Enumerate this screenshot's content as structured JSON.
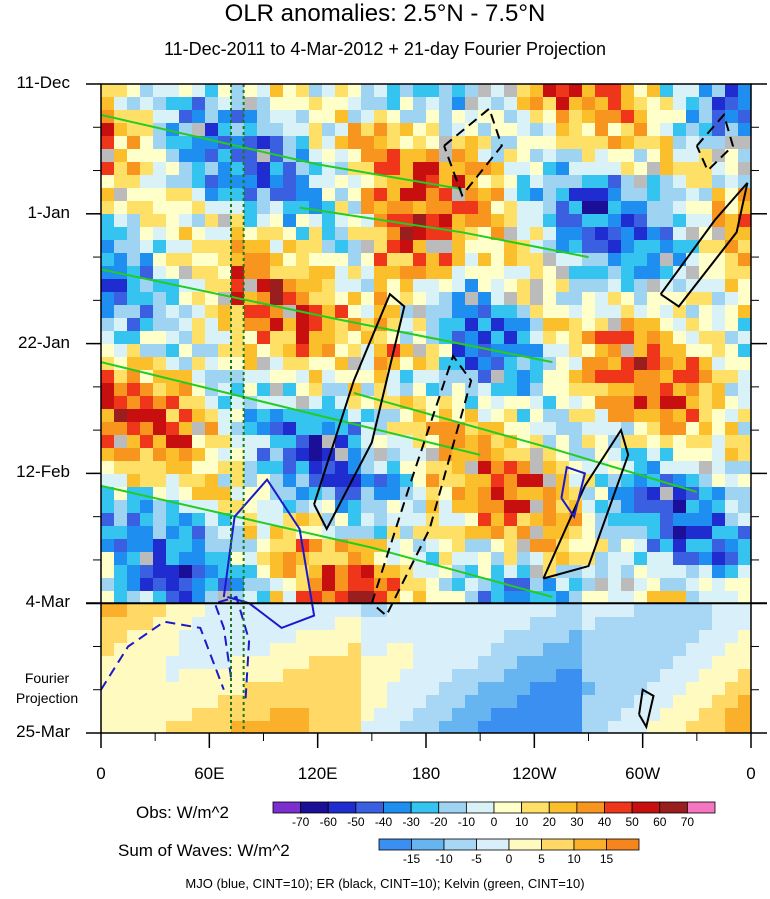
{
  "title": "OLR anomalies: 2.5°N - 7.5°N",
  "subtitle": "11-Dec-2011 to 4-Mar-2012 + 21-day Fourier Projection",
  "caption": "MJO (blue, CINT=10); ER (black, CINT=10); Kelvin (green, CINT=10)",
  "projection_label": [
    "Fourier",
    "Projection"
  ],
  "colors": {
    "mjo": "#1a1acc",
    "er": "#000000",
    "kelvin": "#22cc22",
    "missing": "#bbbbbb"
  },
  "legend_obs": {
    "label": "Obs: W/m^2",
    "ticks": [
      "-70",
      "-60",
      "-50",
      "-40",
      "-30",
      "-20",
      "-10",
      "0",
      "10",
      "20",
      "30",
      "40",
      "50",
      "60",
      "70"
    ],
    "colors": [
      "#7b2fd1",
      "#1a0f96",
      "#1f2ccf",
      "#3a5fe0",
      "#1e8ff0",
      "#35c3f0",
      "#9fd3f2",
      "#d9f2f7",
      "#ffffc9",
      "#ffe066",
      "#fbbf2c",
      "#f7951e",
      "#f0361a",
      "#c80f0f",
      "#9a1e1e",
      "#f575c0"
    ]
  },
  "legend_waves": {
    "label": "Sum of Waves: W/m^2",
    "ticks": [
      "-15",
      "-10",
      "-5",
      "0",
      "5",
      "10",
      "15"
    ],
    "colors": [
      "#3a8ff0",
      "#67b5f0",
      "#a8d6f5",
      "#d9f0fa",
      "#fffbc0",
      "#ffd866",
      "#fbb02c",
      "#f7851e"
    ]
  },
  "chart_data": {
    "type": "heatmap",
    "description_axes": "Hovmoller: longitude (x) vs time (y, downward)",
    "x_ticks": [
      "0",
      "60E",
      "120E",
      "180",
      "120W",
      "60W",
      "0"
    ],
    "x_values": [
      0,
      60,
      120,
      180,
      240,
      300,
      360
    ],
    "y_ticks": [
      "11-Dec",
      "1-Jan",
      "22-Jan",
      "12-Feb",
      "4-Mar",
      "25-Mar"
    ],
    "y_day_offsets": [
      0,
      21,
      42,
      63,
      84,
      105
    ],
    "xlim": [
      0,
      360
    ],
    "ylim_days": [
      0,
      105
    ],
    "projection_start_day": 84,
    "reference_lines_lon": [
      72,
      79
    ],
    "mjo_contours_dashed": [
      {
        "pts": [
          [
            72,
            96
          ],
          [
            68,
            88
          ],
          [
            63,
            84
          ],
          [
            75,
            83
          ],
          [
            82,
            90
          ],
          [
            80,
            100
          ]
        ]
      },
      {
        "pts": [
          [
            0,
            98
          ],
          [
            15,
            91
          ],
          [
            35,
            87
          ],
          [
            55,
            88
          ],
          [
            68,
            98
          ]
        ]
      }
    ],
    "mjo_contours_solid": [
      {
        "pts": [
          [
            68,
            83
          ],
          [
            74,
            70
          ],
          [
            92,
            64
          ],
          [
            110,
            72
          ],
          [
            118,
            86
          ],
          [
            100,
            88
          ],
          [
            82,
            84
          ],
          [
            70,
            83
          ]
        ]
      },
      {
        "pts": [
          [
            255,
            67
          ],
          [
            258,
            62
          ],
          [
            268,
            63
          ],
          [
            262,
            70
          ],
          [
            255,
            67
          ]
        ]
      }
    ],
    "er_contours_solid": [
      {
        "pts": [
          [
            118,
            68
          ],
          [
            140,
            48
          ],
          [
            160,
            34
          ],
          [
            168,
            36
          ],
          [
            150,
            58
          ],
          [
            125,
            72
          ],
          [
            118,
            68
          ]
        ]
      },
      {
        "pts": [
          [
            245,
            80
          ],
          [
            268,
            65
          ],
          [
            288,
            56
          ],
          [
            292,
            60
          ],
          [
            270,
            78
          ],
          [
            245,
            80
          ]
        ]
      },
      {
        "pts": [
          [
            310,
            34
          ],
          [
            340,
            22
          ],
          [
            358,
            16
          ],
          [
            352,
            24
          ],
          [
            320,
            36
          ],
          [
            310,
            34
          ]
        ]
      },
      {
        "pts": [
          [
            298,
            102
          ],
          [
            300,
            98
          ],
          [
            306,
            99
          ],
          [
            302,
            104
          ],
          [
            298,
            102
          ]
        ]
      }
    ],
    "er_contours_dashed": [
      {
        "pts": [
          [
            150,
            84
          ],
          [
            172,
            64
          ],
          [
            195,
            44
          ],
          [
            205,
            48
          ],
          [
            182,
            72
          ],
          [
            158,
            86
          ],
          [
            150,
            84
          ]
        ]
      },
      {
        "pts": [
          [
            190,
            10
          ],
          [
            215,
            4
          ],
          [
            222,
            10
          ],
          [
            200,
            18
          ],
          [
            190,
            10
          ]
        ]
      },
      {
        "pts": [
          [
            330,
            10
          ],
          [
            345,
            5
          ],
          [
            350,
            10
          ],
          [
            336,
            14
          ],
          [
            330,
            10
          ]
        ]
      }
    ],
    "kelvin_contours": [
      {
        "pts": [
          [
            0,
            5
          ],
          [
            120,
            13
          ],
          [
            200,
            17
          ]
        ]
      },
      {
        "pts": [
          [
            0,
            30
          ],
          [
            130,
            38
          ],
          [
            250,
            45
          ]
        ]
      },
      {
        "pts": [
          [
            0,
            45
          ],
          [
            140,
            55
          ],
          [
            210,
            60
          ]
        ]
      },
      {
        "pts": [
          [
            0,
            65
          ],
          [
            150,
            75
          ],
          [
            250,
            83
          ]
        ]
      },
      {
        "pts": [
          [
            110,
            20
          ],
          [
            200,
            24
          ],
          [
            270,
            28
          ]
        ]
      },
      {
        "pts": [
          [
            140,
            50
          ],
          [
            250,
            59
          ],
          [
            330,
            66
          ]
        ]
      }
    ]
  }
}
